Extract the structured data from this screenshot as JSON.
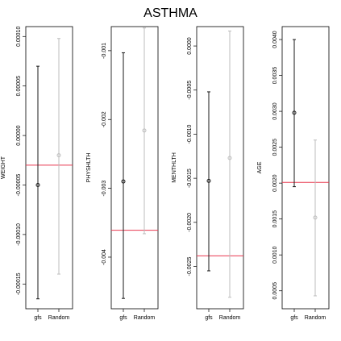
{
  "title": "ASTHMA",
  "colors": {
    "gfs": "#1a1a1a",
    "random": "#bdbdbd",
    "reference": "#e8384f"
  },
  "chart_data": [
    {
      "type": "scatter",
      "ylabel": "WEIGHT",
      "categories": [
        "gfs",
        "Random"
      ],
      "ylim": [
        -0.000175,
        0.00011
      ],
      "yticks": [
        -0.00015,
        -0.0001,
        -5e-05,
        0.0,
        5e-05,
        0.0001
      ],
      "ytick_labels": [
        "-0.00015",
        "-0.00010",
        "-0.00005",
        "0.00000",
        "0.00005",
        "0.00010"
      ],
      "reference_line": -3e-05,
      "series": [
        {
          "values": [
            {
              "x": "gfs",
              "center": -5e-05,
              "lower": -0.000165,
              "upper": 7e-05
            }
          ]
        },
        {
          "values": [
            {
              "x": "Random",
              "center": -2e-05,
              "lower": -0.00014,
              "upper": 9.8e-05
            }
          ]
        }
      ]
    },
    {
      "type": "scatter",
      "ylabel": "PHYSHLTH",
      "categories": [
        "gfs",
        "Random"
      ],
      "ylim": [
        -0.00475,
        -0.00065
      ],
      "yticks": [
        -0.004,
        -0.003,
        -0.002,
        -0.001
      ],
      "ytick_labels": [
        "-0.004",
        "-0.003",
        "-0.002",
        "-0.001"
      ],
      "reference_line": -0.00361,
      "series": [
        {
          "values": [
            {
              "x": "gfs",
              "center": -0.0029,
              "lower": -0.0046,
              "upper": -0.00103
            }
          ]
        },
        {
          "values": [
            {
              "x": "Random",
              "center": -0.00216,
              "lower": -0.00366,
              "upper": -0.00067
            }
          ]
        }
      ]
    },
    {
      "type": "scatter",
      "ylabel": "MENTHLTH",
      "categories": [
        "gfs",
        "Random"
      ],
      "ylim": [
        -0.00298,
        0.00022
      ],
      "yticks": [
        -0.0025,
        -0.002,
        -0.0015,
        -0.001,
        -0.0005,
        0.0
      ],
      "ytick_labels": [
        "-0.0025",
        "-0.0020",
        "-0.0015",
        "-0.0010",
        "-0.0005",
        "0.0000"
      ],
      "reference_line": -0.00238,
      "series": [
        {
          "values": [
            {
              "x": "gfs",
              "center": -0.00153,
              "lower": -0.00255,
              "upper": -0.00052
            }
          ]
        },
        {
          "values": [
            {
              "x": "Random",
              "center": -0.00127,
              "lower": -0.00285,
              "upper": 0.00017
            }
          ]
        }
      ]
    },
    {
      "type": "scatter",
      "ylabel": "AGE",
      "categories": [
        "gfs",
        "Random"
      ],
      "ylim": [
        0.00025,
        0.00418
      ],
      "yticks": [
        0.0005,
        0.001,
        0.0015,
        0.002,
        0.0025,
        0.003,
        0.0035,
        0.004
      ],
      "ytick_labels": [
        "0.0005",
        "0.0010",
        "0.0015",
        "0.0020",
        "0.0025",
        "0.0030",
        "0.0035",
        "0.0040"
      ],
      "reference_line": 0.00201,
      "series": [
        {
          "values": [
            {
              "x": "gfs",
              "center": 0.00298,
              "lower": 0.00195,
              "upper": 0.004
            }
          ]
        },
        {
          "values": [
            {
              "x": "Random",
              "center": 0.00152,
              "lower": 0.00043,
              "upper": 0.0026
            }
          ]
        }
      ]
    }
  ]
}
